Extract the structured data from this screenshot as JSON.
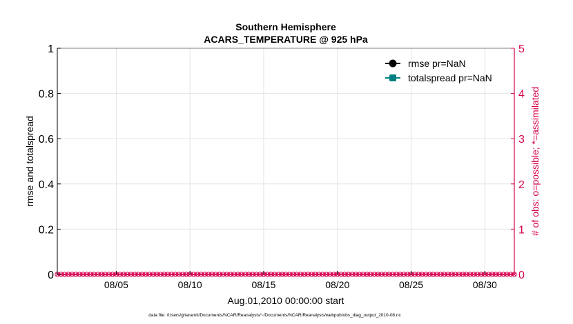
{
  "chart_data": {
    "type": "line",
    "title": [
      "Southern Hemisphere",
      "ACARS_TEMPERATURE @ 925 hPa"
    ],
    "xlabel": "Aug.01,2010 00:00:00 start",
    "ylabel": "rmse and totalspread",
    "y2label": "# of obs: o=possible; *=assimilated",
    "footnote": "data file: /Users/gharamti/Documents/NCAR/Reanalysis/~/Documents/NCAR/Reanalysis/webpub/obs_diag_output_2010-08.nc",
    "xlim_days": [
      0,
      31
    ],
    "x_ticks": [
      {
        "day": 4,
        "label": "08/05"
      },
      {
        "day": 9,
        "label": "08/10"
      },
      {
        "day": 14,
        "label": "08/15"
      },
      {
        "day": 19,
        "label": "08/20"
      },
      {
        "day": 24,
        "label": "08/25"
      },
      {
        "day": 29,
        "label": "08/30"
      }
    ],
    "ylim": [
      0,
      1
    ],
    "y_ticks": [
      "0",
      "0.2",
      "0.4",
      "0.6",
      "0.8",
      "1"
    ],
    "y2lim": [
      0,
      5
    ],
    "y2_ticks": [
      "0",
      "1",
      "2",
      "3",
      "4",
      "5"
    ],
    "grid": true,
    "legend_position": "top-right",
    "series": [
      {
        "name": "rmse pr=NaN",
        "color": "#000000",
        "marker": "circle",
        "values": []
      },
      {
        "name": "totalspread pr=NaN",
        "color": "#008080",
        "marker": "square",
        "values": []
      }
    ],
    "obs_counts": {
      "possible": 0,
      "assimilated": 0,
      "interval_hours": 6,
      "color": "#D6004F"
    },
    "colors": {
      "right_axis": "#D6004F"
    }
  }
}
